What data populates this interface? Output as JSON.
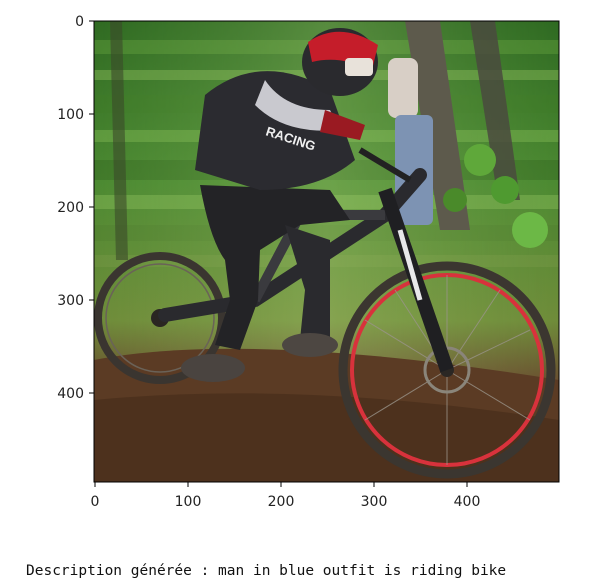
{
  "figure": {
    "image_subject": "downhill mountain biker on muddy trail in forest",
    "colors": {
      "frame": "#000000",
      "foliage": "#3f7a2a",
      "dirt": "#5a3a22",
      "rim": "#d8323c",
      "jersey": "#2b2b30",
      "helmet": "#c51d2a"
    },
    "x_axis": {
      "ticks": [
        "0",
        "100",
        "200",
        "300",
        "400"
      ]
    },
    "y_axis": {
      "ticks": [
        "0",
        "100",
        "200",
        "300",
        "400"
      ]
    }
  },
  "caption": {
    "text": "Description générée : man in blue outfit is riding bike"
  }
}
